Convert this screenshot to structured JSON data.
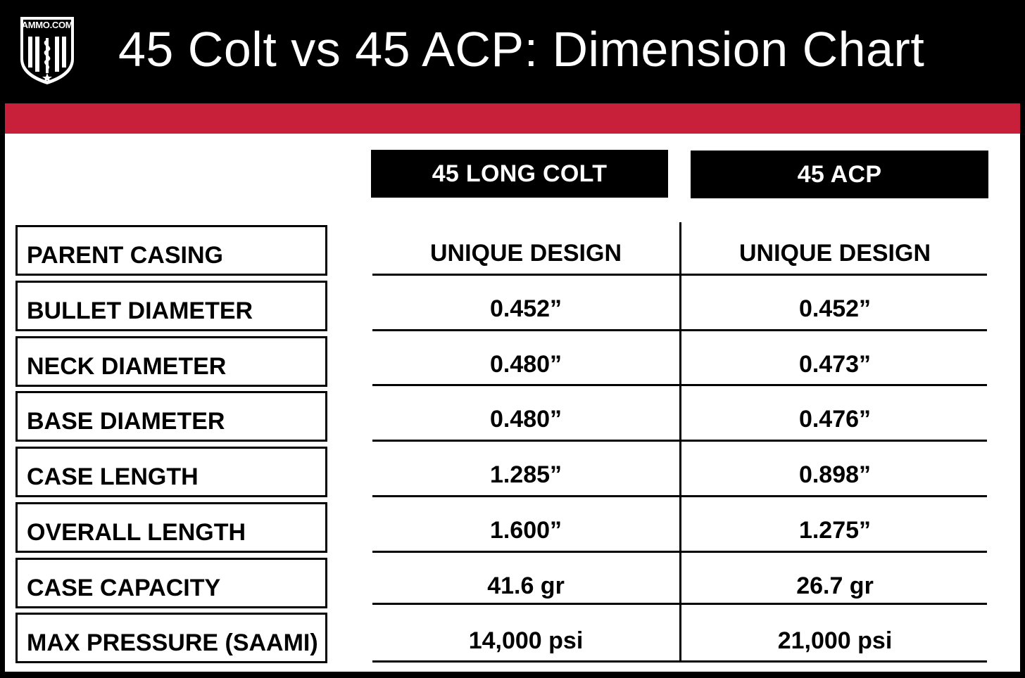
{
  "header": {
    "logo_text": "AMMO.COM",
    "title": "45 Colt vs 45 ACP: Dimension Chart"
  },
  "colors": {
    "header_bg": "#000000",
    "accent_bar": "#c8203b",
    "panel_bg": "#ffffff"
  },
  "table": {
    "columns": [
      "45 LONG COLT",
      "45 ACP"
    ],
    "rows": [
      {
        "label": "PARENT CASING",
        "values": [
          "UNIQUE DESIGN",
          "UNIQUE DESIGN"
        ]
      },
      {
        "label": "BULLET DIAMETER",
        "values": [
          "0.452”",
          "0.452”"
        ]
      },
      {
        "label": "NECK DIAMETER",
        "values": [
          "0.480”",
          "0.473”"
        ]
      },
      {
        "label": "BASE DIAMETER",
        "values": [
          "0.480”",
          "0.476”"
        ]
      },
      {
        "label": "CASE LENGTH",
        "values": [
          "1.285”",
          "0.898”"
        ]
      },
      {
        "label": "OVERALL LENGTH",
        "values": [
          "1.600”",
          "1.275”"
        ]
      },
      {
        "label": "CASE CAPACITY",
        "values": [
          "41.6 gr",
          "26.7 gr"
        ]
      },
      {
        "label": "MAX PRESSURE (SAAMI)",
        "values": [
          "14,000 psi",
          "21,000 psi"
        ]
      }
    ]
  }
}
